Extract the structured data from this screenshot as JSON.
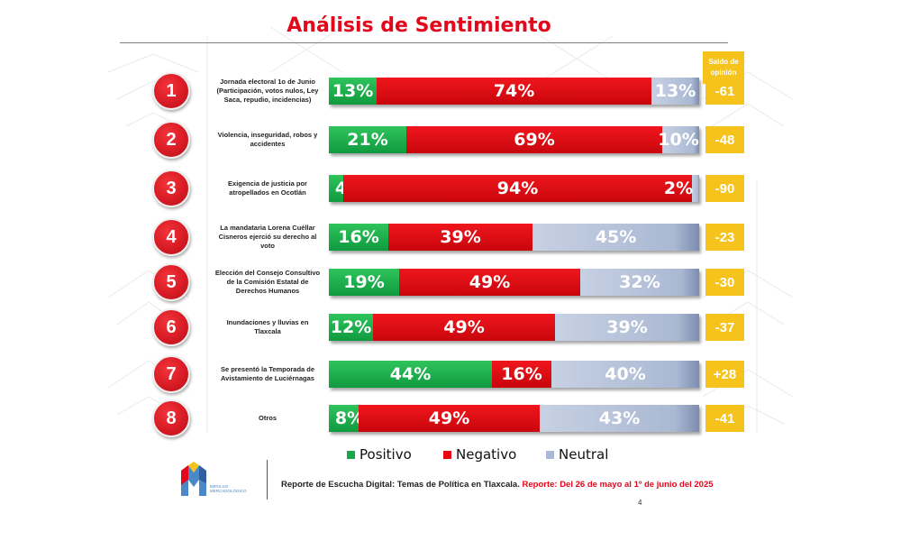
{
  "title": "Análisis de Sentimiento",
  "saldo_header": "Saldo de opinión",
  "chart_data": {
    "type": "bar",
    "orientation": "horizontal",
    "stacked": true,
    "title": "Análisis de Sentimiento",
    "categories": [
      "Jornada electoral 1o de Junio (Participación, votos nulos, Ley Saca, repudio, incidencias)",
      "Violencia, inseguridad, robos y accidentes",
      "Exigencia de justicia por atropellados en Ocotlán",
      "La mandataria Lorena Cuéllar Cisneros ejerció su derecho al voto",
      "Elección del Consejo Consultivo de la Comisión Estatal de Derechos Humanos",
      "Inundaciones y lluvias en Tlaxcala",
      "Se presentó la Temporada de Avistamiento de Luciérnagas",
      "Otros"
    ],
    "ranks": [
      "1",
      "2",
      "3",
      "4",
      "5",
      "6",
      "7",
      "8"
    ],
    "series": [
      {
        "name": "Positivo",
        "color": "#1aa64b",
        "values": [
          13,
          21,
          4,
          16,
          19,
          12,
          44,
          8
        ]
      },
      {
        "name": "Negativo",
        "color": "#e8070e",
        "values": [
          74,
          69,
          94,
          39,
          49,
          49,
          16,
          49
        ]
      },
      {
        "name": "Neutral",
        "color": "#a9b8d4",
        "values": [
          13,
          10,
          2,
          45,
          32,
          39,
          40,
          43
        ]
      }
    ],
    "saldo": [
      "-61",
      "-48",
      "-90",
      "-23",
      "-30",
      "-37",
      "+28",
      "-41"
    ],
    "xlim": [
      0,
      100
    ],
    "legend_position": "bottom"
  },
  "footer": {
    "report": "Reporte de Escucha Digital: Temas de Política en Tlaxcala.",
    "period": "Reporte: Del 26 de mayo al 1º de junio del 2025",
    "logo_text": "IMPULSO MERCADOLÓGICO",
    "page": "4"
  },
  "colors": {
    "title": "#e2071b",
    "saldo_box": "#f6c31c",
    "circle": "#d81b24"
  }
}
